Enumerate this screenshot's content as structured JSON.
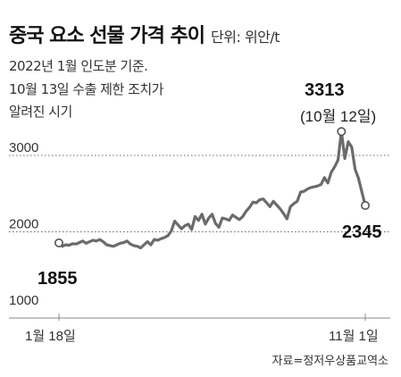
{
  "title": "중국 요소 선물 가격 추이",
  "unit": "단위: 위안/t",
  "notes": [
    "2022년 1월 인도분 기준.",
    "10월 13일 수출 제한 조치가",
    "알려진 시기"
  ],
  "source": "자료=정저우상품교역소",
  "annotations": {
    "max_value": "3313",
    "max_date": "(10월 12일)",
    "first_value": "1855",
    "last_value": "2345"
  },
  "chart_data": {
    "type": "line",
    "title": "중국 요소 선물 가격 추이",
    "ylabel": "단위: 위안/t",
    "ylim": [
      1000,
      3313
    ],
    "yticks": [
      1000,
      2000,
      3000
    ],
    "xtick_labels": [
      "1월 18일",
      "11월 1일"
    ],
    "grid": "dotted horizontal at 2000 and 3000",
    "line_color": "#6b6b6b",
    "series": [
      {
        "values": [
          1855,
          1810,
          1830,
          1825,
          1845,
          1840,
          1860,
          1880,
          1850,
          1870,
          1890,
          1880,
          1900,
          1870,
          1830,
          1820,
          1810,
          1830,
          1850,
          1860,
          1880,
          1840,
          1820,
          1810,
          1790,
          1830,
          1870,
          1830,
          1900,
          1890,
          1910,
          1925,
          1950,
          2010,
          2140,
          2090,
          2040,
          2080,
          2100,
          2030,
          2200,
          2150,
          2230,
          2100,
          2180,
          2230,
          2110,
          2060,
          2180,
          2170,
          2150,
          2220,
          2190,
          2160,
          2200,
          2270,
          2320,
          2390,
          2380,
          2420,
          2430,
          2380,
          2330,
          2400,
          2350,
          2300,
          2240,
          2170,
          2330,
          2370,
          2400,
          2520,
          2530,
          2560,
          2580,
          2590,
          2600,
          2620,
          2710,
          2640,
          2780,
          2850,
          2940,
          3313,
          2960,
          3180,
          3110,
          2820,
          2700,
          2520,
          2345
        ]
      }
    ]
  }
}
